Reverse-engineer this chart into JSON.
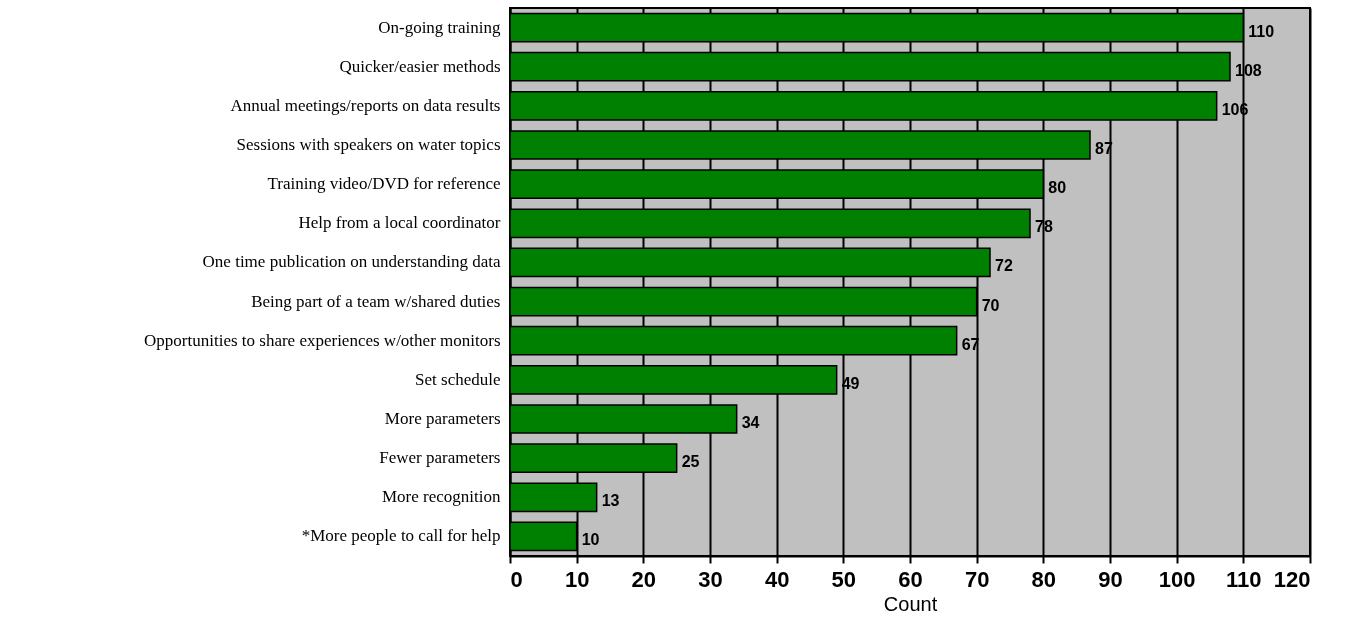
{
  "chart_data": {
    "type": "bar",
    "orientation": "horizontal",
    "xlabel": "Count",
    "categories": [
      "On-going training",
      "Quicker/easier methods",
      "Annual meetings/reports on data results",
      "Sessions with speakers on water topics",
      "Training video/DVD for reference",
      "Help from a local coordinator",
      "One time publication on understanding data",
      "Being part of a team w/shared duties",
      "Opportunities to share experiences w/other monitors",
      "Set schedule",
      "More parameters",
      "Fewer parameters",
      "More recognition",
      "*More people to call for help"
    ],
    "values": [
      110,
      108,
      106,
      87,
      80,
      78,
      72,
      70,
      67,
      49,
      34,
      25,
      13,
      10
    ],
    "color": "#008000",
    "xlim": [
      0,
      120
    ],
    "xticks": [
      0,
      10,
      20,
      30,
      40,
      50,
      60,
      70,
      80,
      90,
      100,
      110,
      120
    ],
    "grid": "x",
    "data_labels": true
  }
}
